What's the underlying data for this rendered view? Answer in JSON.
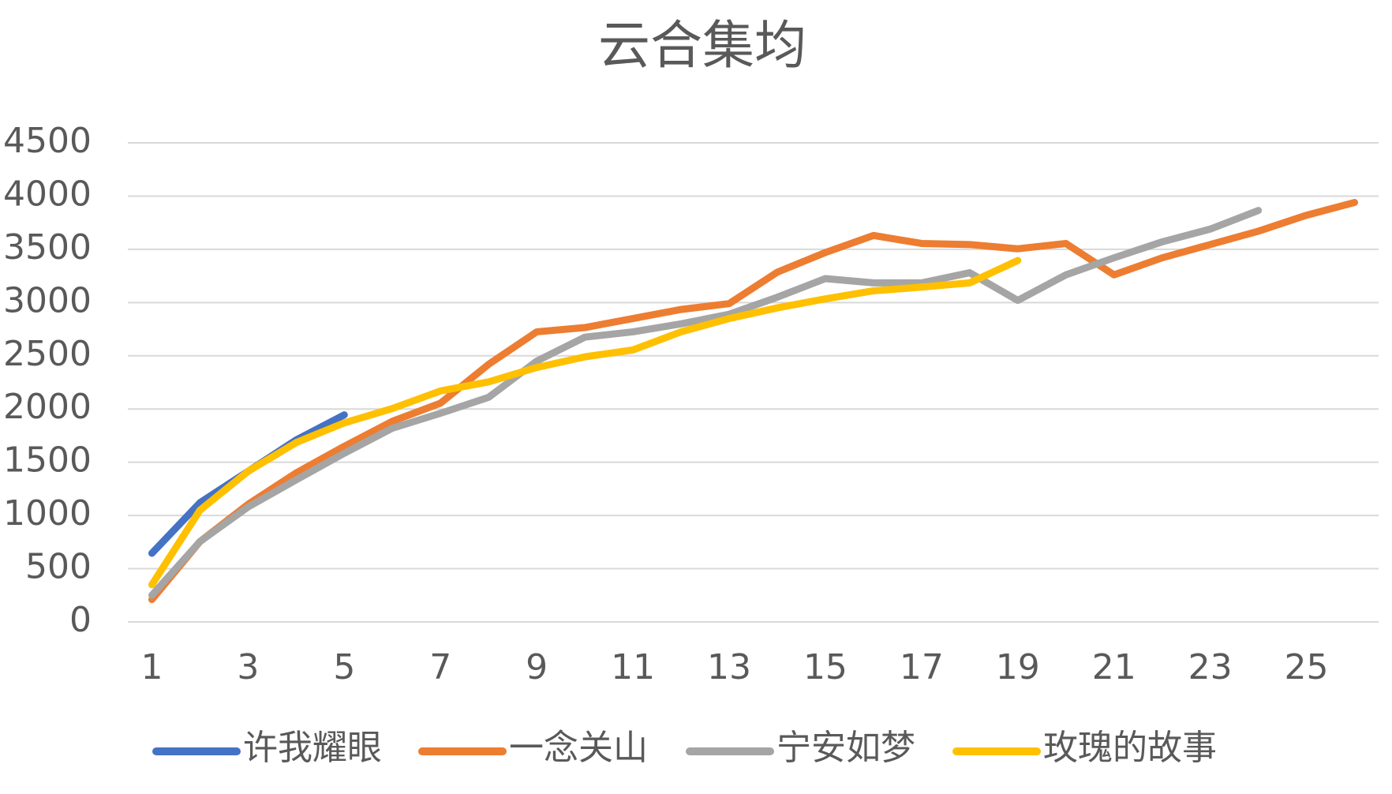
{
  "chart_data": {
    "type": "line",
    "title": "云合集均",
    "categories": [
      "1",
      null,
      "3",
      null,
      "5",
      null,
      "7",
      null,
      "9",
      null,
      "11",
      null,
      "13",
      null,
      "15",
      null,
      "17",
      null,
      "19",
      null,
      "21",
      null,
      "23",
      null,
      "25",
      null
    ],
    "series": [
      {
        "name": "许我耀眼",
        "color": "#4472c4",
        "values": [
          645,
          1120,
          1415,
          1710,
          1945,
          null,
          null,
          null,
          null,
          null,
          null,
          null,
          null,
          null,
          null,
          null,
          null,
          null,
          null,
          null,
          null,
          null,
          null,
          null,
          null,
          null
        ]
      },
      {
        "name": "一念关山",
        "color": "#ed7d31",
        "values": [
          210,
          755,
          1105,
          1400,
          1650,
          1885,
          2055,
          2420,
          2725,
          2765,
          2850,
          2935,
          2990,
          3285,
          3470,
          3630,
          3555,
          3545,
          3505,
          3555,
          3260,
          3420,
          3545,
          3670,
          3820,
          3940
        ]
      },
      {
        "name": "宁安如梦",
        "color": "#a5a5a5",
        "values": [
          250,
          755,
          1080,
          1335,
          1585,
          1820,
          1960,
          2110,
          2450,
          2675,
          2725,
          2800,
          2890,
          3050,
          3225,
          3185,
          3185,
          3280,
          3020,
          3260,
          3420,
          3570,
          3690,
          3865,
          null,
          null
        ]
      },
      {
        "name": "玫瑰的故事",
        "color": "#ffc000",
        "values": [
          350,
          1050,
          1415,
          1685,
          1870,
          2005,
          2170,
          2255,
          2390,
          2490,
          2555,
          2725,
          2850,
          2950,
          3035,
          3110,
          3145,
          3185,
          3395,
          null,
          null,
          null,
          null,
          null,
          null,
          null
        ]
      }
    ],
    "ylim": [
      0,
      4500
    ],
    "yticks": [
      0,
      500,
      1000,
      1500,
      2000,
      2500,
      3000,
      3500,
      4000,
      4500
    ],
    "grid": true,
    "legend": "bottom"
  }
}
